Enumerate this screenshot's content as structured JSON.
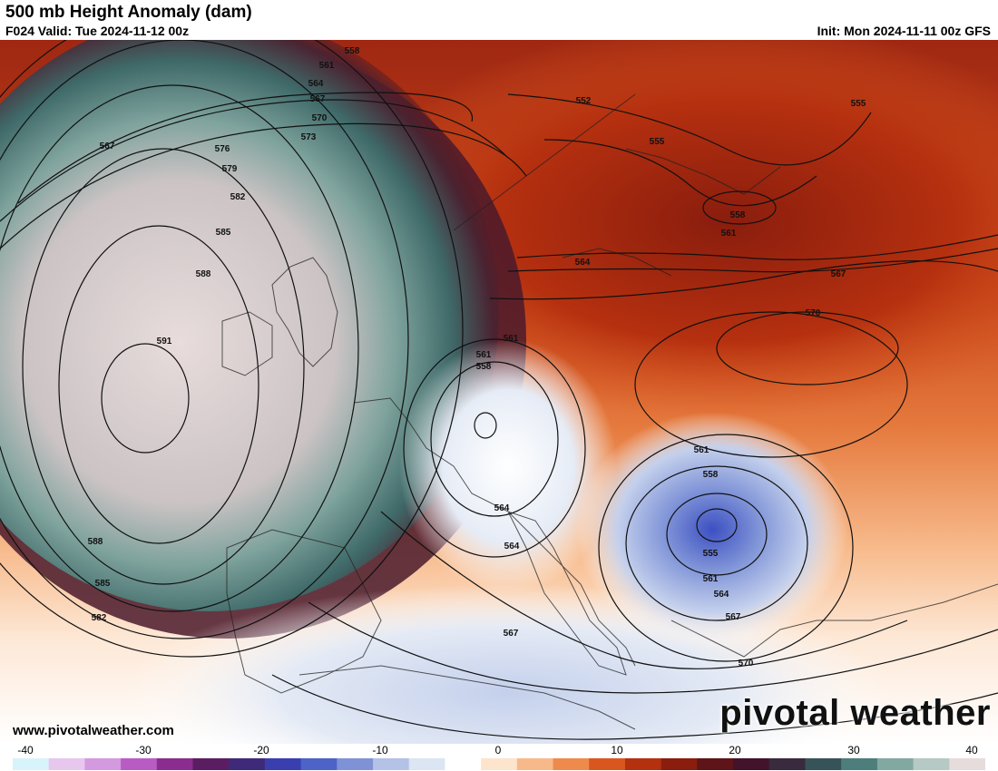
{
  "header": {
    "title": "500 mb Height Anomaly (dam)",
    "valid": "F024 Valid: Tue 2024-11-12 00z",
    "init": "Init: Mon 2024-11-11 00z GFS"
  },
  "footer": {
    "url": "www.pivotalweather.com",
    "brand": "pivotal weather"
  },
  "contour_labels": [
    "558",
    "561",
    "564",
    "567",
    "570",
    "573",
    "576",
    "579",
    "582",
    "585",
    "588",
    "591",
    "552",
    "555",
    "558",
    "561",
    "564",
    "567",
    "570",
    "561",
    "558",
    "561",
    "564",
    "561",
    "558",
    "555",
    "561",
    "564",
    "567",
    "570",
    "567",
    "588",
    "585",
    "582",
    "564",
    "567",
    "555"
  ],
  "colorbar": {
    "ticks": [
      "-40",
      "-30",
      "-20",
      "-10",
      "0",
      "10",
      "20",
      "30",
      "40"
    ],
    "colors": [
      "#d7f3fb",
      "#e7c7ee",
      "#d49ae0",
      "#b85cc4",
      "#8b2c8f",
      "#5b1d62",
      "#3f2a7a",
      "#3a3fb0",
      "#4d63c8",
      "#7f92d6",
      "#b3c2e6",
      "#dbe5f3",
      "#ffffff",
      "#fde4cc",
      "#f7b98a",
      "#ee8a4c",
      "#d9571f",
      "#b5300f",
      "#8a1d0e",
      "#5e1418",
      "#42132a",
      "#3a2a3e",
      "#36535a",
      "#4e7e7c",
      "#82a8a2",
      "#b6c9c4",
      "#e6dcdc"
    ]
  }
}
